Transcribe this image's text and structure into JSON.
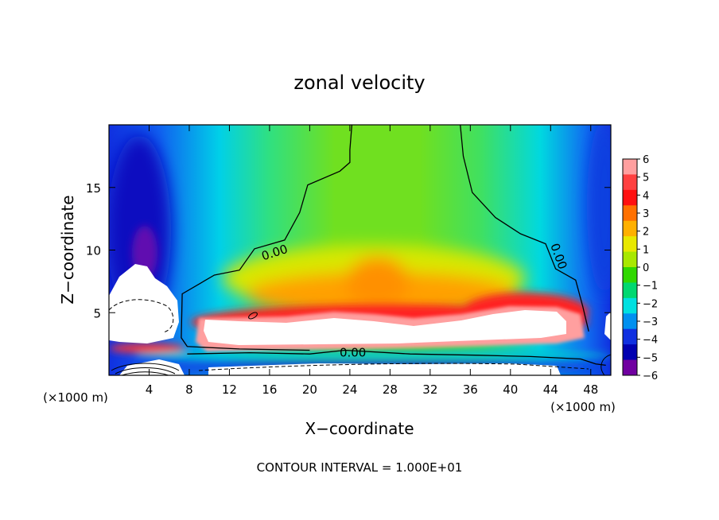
{
  "chart_data": {
    "type": "heatmap",
    "title": "zonal velocity",
    "xlabel": "X−coordinate",
    "ylabel": "Z−coordinate",
    "x_unit_left": "(×1000 m)",
    "x_unit_right": "(×1000 m)",
    "xlim": [
      0,
      50
    ],
    "ylim": [
      0,
      20
    ],
    "x_ticks": [
      4,
      8,
      12,
      16,
      20,
      24,
      28,
      32,
      36,
      40,
      44,
      48
    ],
    "x_tick_labels": [
      "4",
      "8",
      "12",
      "16",
      "20",
      "24",
      "28",
      "32",
      "36",
      "40",
      "44",
      "48"
    ],
    "y_ticks": [
      5,
      10,
      15
    ],
    "y_tick_labels": [
      "5",
      "10",
      "15"
    ],
    "contour_label": "0.00",
    "footer": "CONTOUR INTERVAL = 1.000E+01",
    "colorbar": {
      "min": -6,
      "max": 6,
      "tick_values": [
        6,
        5,
        4,
        3,
        2,
        1,
        0,
        -1,
        -2,
        -3,
        -4,
        -5,
        -6
      ],
      "tick_labels": [
        "6",
        "5",
        "4",
        "3",
        "2",
        "1",
        "0",
        "−1",
        "−2",
        "−3",
        "−4",
        "−5",
        "−6"
      ],
      "colors": [
        "#ff9f9f",
        "#ff4040",
        "#ff1010",
        "#ff7000",
        "#ffb000",
        "#e8e800",
        "#a8e800",
        "#30d800",
        "#00d870",
        "#00e0e0",
        "#0090f0",
        "#1030e0",
        "#0000b0",
        "#7000a0"
      ]
    },
    "contours": {
      "zero_left": [
        [
          24.2,
          20
        ],
        [
          24,
          18
        ],
        [
          24,
          17
        ],
        [
          23,
          16.3
        ],
        [
          19.8,
          15.2
        ],
        [
          19,
          13
        ],
        [
          17.5,
          10.8
        ],
        [
          14.5,
          10.1
        ],
        [
          13,
          8.4
        ],
        [
          10.5,
          8.0
        ],
        [
          7.3,
          6.5
        ],
        [
          7.2,
          3.0
        ],
        [
          7.8,
          2.3
        ],
        [
          13,
          2.1
        ],
        [
          20,
          2.0
        ]
      ],
      "zero_right": [
        [
          35,
          20
        ],
        [
          35.3,
          17.5
        ],
        [
          36.2,
          14.6
        ],
        [
          38.5,
          12.6
        ],
        [
          41,
          11.3
        ],
        [
          43.5,
          10.5
        ],
        [
          44.5,
          8.5
        ],
        [
          46.5,
          7.6
        ],
        [
          47.2,
          5.5
        ],
        [
          47.8,
          3.5
        ]
      ],
      "zero_lower": [
        [
          7.8,
          1.7
        ],
        [
          14,
          1.8
        ],
        [
          20,
          1.7
        ],
        [
          23.5,
          2.0
        ],
        [
          30,
          1.7
        ],
        [
          37,
          1.6
        ],
        [
          42,
          1.5
        ],
        [
          47,
          1.3
        ],
        [
          48.5,
          0.9
        ],
        [
          49.5,
          0.8
        ]
      ],
      "zero_label_left": [
        16.5,
        9.8
      ],
      "zero_label_mid": [
        24.3,
        1.8
      ],
      "zero_label_right": [
        44.8,
        9.5
      ]
    }
  }
}
